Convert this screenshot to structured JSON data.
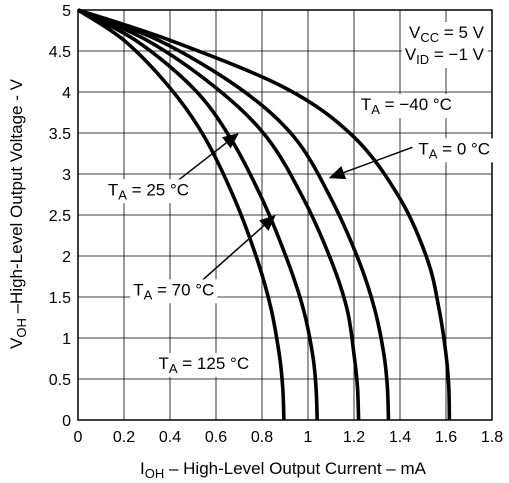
{
  "chart_data": {
    "type": "line",
    "title": "",
    "xlabel": {
      "main": "I",
      "sub": "OH",
      "rest": " – High-Level Output Current – mA"
    },
    "ylabel": {
      "main": "V",
      "sub": "OH",
      "rest": " –High-Level Output Voltage - V"
    },
    "xlim": [
      0,
      1.8
    ],
    "ylim": [
      0,
      5
    ],
    "x_ticks": [
      "0",
      "0.2",
      "0.4",
      "0.6",
      "0.8",
      "1",
      "1.2",
      "1.4",
      "1.6",
      "1.8"
    ],
    "y_ticks": [
      "0",
      "0.5",
      "1",
      "1.5",
      "2",
      "2.5",
      "3",
      "3.5",
      "4",
      "4.5",
      "5"
    ],
    "grid": true,
    "conditions": [
      {
        "main": "V",
        "sub": "CC",
        "rest": " = 5 V"
      },
      {
        "main": "V",
        "sub": "ID",
        "rest": " = −1 V"
      }
    ],
    "series": [
      {
        "name": "T_A = 125 °C",
        "points": [
          [
            0,
            5
          ],
          [
            0.2,
            4.63
          ],
          [
            0.4,
            4.05
          ],
          [
            0.55,
            3.45
          ],
          [
            0.68,
            2.7
          ],
          [
            0.78,
            1.95
          ],
          [
            0.84,
            1.35
          ],
          [
            0.875,
            0.8
          ],
          [
            0.89,
            0.4
          ],
          [
            0.895,
            0
          ]
        ]
      },
      {
        "name": "T_A = 70 °C",
        "points": [
          [
            0,
            5
          ],
          [
            0.25,
            4.63
          ],
          [
            0.5,
            4.05
          ],
          [
            0.66,
            3.45
          ],
          [
            0.8,
            2.7
          ],
          [
            0.91,
            1.95
          ],
          [
            0.98,
            1.35
          ],
          [
            1.02,
            0.8
          ],
          [
            1.035,
            0.4
          ],
          [
            1.04,
            0
          ]
        ]
      },
      {
        "name": "T_A = 25 °C",
        "points": [
          [
            0,
            5
          ],
          [
            0.3,
            4.63
          ],
          [
            0.6,
            4.05
          ],
          [
            0.82,
            3.45
          ],
          [
            0.98,
            2.7
          ],
          [
            1.1,
            1.95
          ],
          [
            1.17,
            1.35
          ],
          [
            1.2,
            0.8
          ],
          [
            1.215,
            0.4
          ],
          [
            1.22,
            0
          ]
        ]
      },
      {
        "name": "T_A = 0 °C",
        "points": [
          [
            0,
            5
          ],
          [
            0.35,
            4.63
          ],
          [
            0.7,
            4.05
          ],
          [
            0.94,
            3.45
          ],
          [
            1.1,
            2.7
          ],
          [
            1.22,
            1.95
          ],
          [
            1.29,
            1.35
          ],
          [
            1.33,
            0.8
          ],
          [
            1.345,
            0.4
          ],
          [
            1.35,
            0
          ]
        ]
      },
      {
        "name": "T_A = −40 °C",
        "points": [
          [
            0,
            5
          ],
          [
            0.4,
            4.63
          ],
          [
            0.9,
            4.05
          ],
          [
            1.2,
            3.45
          ],
          [
            1.4,
            2.7
          ],
          [
            1.52,
            1.95
          ],
          [
            1.57,
            1.35
          ],
          [
            1.6,
            0.8
          ],
          [
            1.612,
            0.4
          ],
          [
            1.615,
            0
          ]
        ]
      }
    ],
    "annotations": [
      {
        "main": "T",
        "sub": "A",
        "rest": " = −40 °C",
        "x": 1.23,
        "y": 3.78
      },
      {
        "main": "T",
        "sub": "A",
        "rest": " = 0 °C",
        "x": 1.48,
        "y": 3.24,
        "arrow_to": [
          1.09,
          2.95
        ]
      },
      {
        "main": "T",
        "sub": "A",
        "rest": " = 25 °C",
        "x": 0.13,
        "y": 2.74,
        "arrow_to": [
          0.7,
          3.5
        ]
      },
      {
        "main": "T",
        "sub": "A",
        "rest": " = 70 °C",
        "x": 0.24,
        "y": 1.52,
        "arrow_to": [
          0.86,
          2.5
        ]
      },
      {
        "main": "T",
        "sub": "A",
        "rest": " = 125 °C",
        "x": 0.35,
        "y": 0.62
      }
    ]
  }
}
